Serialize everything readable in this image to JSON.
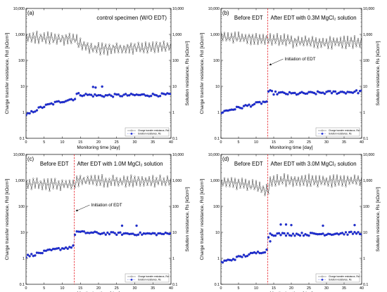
{
  "colors": {
    "charge_transfer": "#222222",
    "solution": "#1f2ed6",
    "edt_line": "#e8242a",
    "axis": "#000000"
  },
  "chart_data": [
    {
      "type": "scatter",
      "panel_label": "(a)",
      "annotation": "control specimen (W/O EDT)",
      "before_label": "",
      "after_label": "",
      "initiation_label": "",
      "edt_day": null,
      "xlabel": "Monitoring time [day]",
      "ylabel_left": "Charge transfer resistance, Rct [kΩcm²]",
      "ylabel_right": "Solution resistance, Rs [kΩcm²]",
      "x_range": [
        0,
        40
      ],
      "y_range": [
        0.1,
        10000
      ],
      "y_scale": "log",
      "x_ticks": [
        "0",
        "5",
        "10",
        "15",
        "20",
        "25",
        "30",
        "35",
        "40"
      ],
      "y_ticks": [
        "0.1",
        "1",
        "10",
        "100",
        "1,000",
        "10,000"
      ],
      "legend": {
        "position": "bottom-right",
        "entries": [
          "Charge transfer resistance, Rct",
          "Solution resistance, Rs"
        ]
      },
      "series": [
        {
          "name": "Charge transfer resistance, Rct",
          "trend": [
            [
              0,
              760
            ],
            [
              3,
              740
            ],
            [
              6,
              720
            ],
            [
              9,
              700
            ],
            [
              12,
              680
            ],
            [
              13.5,
              650
            ],
            [
              15,
              420
            ],
            [
              18,
              300
            ],
            [
              22,
              280
            ],
            [
              26,
              290
            ],
            [
              30,
              300
            ],
            [
              34,
              310
            ],
            [
              40,
              330
            ]
          ],
          "scatter": 0.32,
          "peaks": true
        },
        {
          "name": "Solution resistance, Rs",
          "trend": [
            [
              0,
              0.75
            ],
            [
              2,
              1.1
            ],
            [
              4,
              1.5
            ],
            [
              6,
              1.9
            ],
            [
              8,
              2.3
            ],
            [
              10,
              2.7
            ],
            [
              12,
              3.1
            ],
            [
              13.5,
              3.4
            ],
            [
              14,
              5.0
            ],
            [
              20,
              4.4
            ],
            [
              30,
              4.6
            ],
            [
              40,
              4.8
            ]
          ],
          "scatter": 0.13,
          "outliers": [
            [
              18.5,
              9.5
            ],
            [
              19.2,
              9.0
            ],
            [
              21,
              9.8
            ]
          ]
        }
      ]
    },
    {
      "type": "scatter",
      "panel_label": "(b)",
      "annotation": "",
      "before_label": "Before EDT",
      "after_label": "After EDT with 0.3M MgCl₂ solution",
      "initiation_label": "Initiation of EDT",
      "edt_day": 13.3,
      "xlabel": "Monitoring time [day]",
      "ylabel_left": "Charge transfer resistance, Rct [kΩcm²]",
      "ylabel_right": "Solution resistance, Rs [kΩcm²]",
      "x_range": [
        0,
        40
      ],
      "y_range": [
        0.1,
        10000
      ],
      "y_scale": "log",
      "x_ticks": [
        "0",
        "5",
        "10",
        "15",
        "20",
        "25",
        "30",
        "35",
        "40"
      ],
      "y_ticks": [
        "0.1",
        "1",
        "10",
        "100",
        "1,000",
        "10,000"
      ],
      "legend": {
        "position": "bottom-right",
        "entries": [
          "Charge transfer resistance, Rct",
          "Solution resistance, Rs"
        ]
      },
      "series": [
        {
          "name": "Charge transfer resistance, Rct",
          "trend": [
            [
              0,
              800
            ],
            [
              5,
              760
            ],
            [
              10,
              720
            ],
            [
              13.3,
              690
            ],
            [
              14,
              650
            ],
            [
              20,
              560
            ],
            [
              25,
              520
            ],
            [
              30,
              500
            ],
            [
              35,
              510
            ],
            [
              40,
              520
            ]
          ],
          "scatter": 0.26,
          "peaks": true
        },
        {
          "name": "Solution resistance, Rs",
          "trend": [
            [
              0,
              1.0
            ],
            [
              3,
              1.3
            ],
            [
              6,
              1.6
            ],
            [
              9,
              2.0
            ],
            [
              13,
              2.6
            ],
            [
              13.6,
              6.5
            ],
            [
              15,
              5.6
            ],
            [
              20,
              5.2
            ],
            [
              25,
              5.4
            ],
            [
              30,
              5.8
            ],
            [
              35,
              6.0
            ],
            [
              40,
              6.3
            ]
          ],
          "scatter": 0.14,
          "outliers": []
        }
      ]
    },
    {
      "type": "scatter",
      "panel_label": "(c)",
      "annotation": "",
      "before_label": "Before EDT",
      "after_label": "After EDT with 1.0M MgCl₂ solution",
      "initiation_label": "Initiation of EDT",
      "edt_day": 13.3,
      "xlabel": "Monitoring time [day]",
      "ylabel_left": "Charge transfer resistance, Rct [kΩcm²]",
      "ylabel_right": "Solution resistance, Rs [kΩcm²]",
      "x_range": [
        0,
        40
      ],
      "y_range": [
        0.1,
        10000
      ],
      "y_scale": "log",
      "x_ticks": [
        "0",
        "5",
        "10",
        "15",
        "20",
        "25",
        "30",
        "35",
        "40"
      ],
      "y_ticks": [
        "0.1",
        "1",
        "10",
        "100",
        "1,000",
        "10,000"
      ],
      "legend": {
        "position": "bottom-right",
        "entries": [
          "Charge transfer resistance, Rct",
          "Solution resistance, Rs"
        ]
      },
      "series": [
        {
          "name": "Charge transfer resistance, Rct",
          "trend": [
            [
              0,
              760
            ],
            [
              5,
              740
            ],
            [
              10,
              720
            ],
            [
              13.3,
              700
            ],
            [
              14,
              1000
            ],
            [
              20,
              980
            ],
            [
              25,
              960
            ],
            [
              30,
              960
            ],
            [
              35,
              950
            ],
            [
              40,
              950
            ]
          ],
          "scatter": 0.24,
          "peaks": true
        },
        {
          "name": "Solution resistance, Rs",
          "trend": [
            [
              0,
              1.2
            ],
            [
              3,
              1.5
            ],
            [
              6,
              1.9
            ],
            [
              9,
              2.3
            ],
            [
              13,
              2.8
            ],
            [
              13.6,
              11
            ],
            [
              15,
              10
            ],
            [
              20,
              9.3
            ],
            [
              25,
              9.0
            ],
            [
              30,
              8.8
            ],
            [
              35,
              8.8
            ],
            [
              40,
              8.8
            ]
          ],
          "scatter": 0.12,
          "outliers": [
            [
              26.5,
              18
            ],
            [
              30.5,
              18
            ]
          ]
        }
      ]
    },
    {
      "type": "scatter",
      "panel_label": "(d)",
      "annotation": "",
      "before_label": "Before EDT",
      "after_label": "After EDT with 3.0M MgCl₂ solution",
      "initiation_label": "",
      "edt_day": 13.3,
      "xlabel": "Monitoring time [day]",
      "ylabel_left": "Charge transfer resistance, Rct [kΩcm²]",
      "ylabel_right": "Solution resistance, Rs [kΩcm²]",
      "x_range": [
        0,
        40
      ],
      "y_range": [
        0.1,
        10000
      ],
      "y_scale": "log",
      "x_ticks": [
        "0",
        "5",
        "10",
        "15",
        "20",
        "25",
        "30",
        "35",
        "40"
      ],
      "y_ticks": [
        "0.1",
        "1",
        "10",
        "100",
        "1,000",
        "10,000"
      ],
      "legend": {
        "position": "bottom-right",
        "entries": [
          "Charge transfer resistance, Rct",
          "Solution resistance, Rs"
        ]
      },
      "series": [
        {
          "name": "Charge transfer resistance, Rct",
          "trend": [
            [
              0,
              900
            ],
            [
              5,
              800
            ],
            [
              10,
              600
            ],
            [
              12,
              460
            ],
            [
              13.3,
              420
            ],
            [
              14,
              1000
            ],
            [
              20,
              1000
            ],
            [
              25,
              980
            ],
            [
              30,
              980
            ],
            [
              35,
              980
            ],
            [
              40,
              1000
            ]
          ],
          "scatter": 0.24,
          "peaks": true
        },
        {
          "name": "Solution resistance, Rs",
          "trend": [
            [
              0,
              0.7
            ],
            [
              3,
              0.9
            ],
            [
              6,
              1.2
            ],
            [
              9,
              1.5
            ],
            [
              13,
              2.0
            ],
            [
              13.6,
              9.0
            ],
            [
              15,
              8.5
            ],
            [
              20,
              8.5
            ],
            [
              25,
              8.5
            ],
            [
              30,
              8.8
            ],
            [
              35,
              9.2
            ],
            [
              40,
              9.5
            ]
          ],
          "scatter": 0.13,
          "outliers": [
            [
              17,
              20
            ],
            [
              18.5,
              20
            ],
            [
              20,
              19
            ],
            [
              29,
              18
            ],
            [
              38,
              19
            ],
            [
              14,
              4.5
            ]
          ]
        }
      ]
    }
  ]
}
